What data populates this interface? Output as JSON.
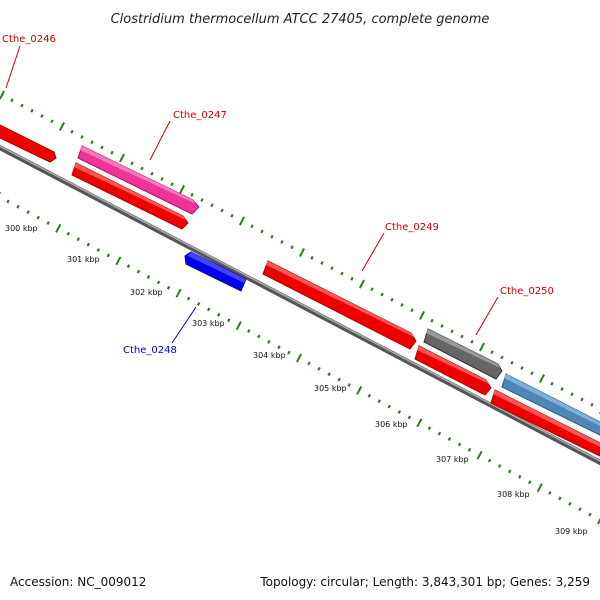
{
  "title": "Clostridium thermocellum ATCC 27405, complete genome",
  "footer": {
    "accession": "Accession: NC_009012",
    "summary": "Topology: circular; Length: 3,843,301 bp; Genes: 3,259"
  },
  "colors": {
    "backbone": "#777777",
    "tick": "#2e7d1f",
    "forward_label": "#cc0000",
    "reverse_label": "#0000cc",
    "gene_red": "#ee0000",
    "gene_pink": "#ee3399",
    "gene_blue": "#0000ee",
    "gene_gray": "#666666",
    "gene_steel": "#4f86b8"
  },
  "genes": [
    {
      "label": "Cthe_0246",
      "color": "gene_red",
      "strand": "forward",
      "label_color": "forward_label"
    },
    {
      "label": "Cthe_0247",
      "color": "gene_pink",
      "strand": "forward",
      "label_color": "forward_label"
    },
    {
      "label": "",
      "color": "gene_red",
      "strand": "forward",
      "label_color": "forward_label"
    },
    {
      "label": "Cthe_0248",
      "color": "gene_blue",
      "strand": "reverse",
      "label_color": "reverse_label"
    },
    {
      "label": "Cthe_0249",
      "color": "gene_red",
      "strand": "forward",
      "label_color": "forward_label"
    },
    {
      "label": "Cthe_0250",
      "color": "gene_gray",
      "strand": "forward",
      "label_color": "forward_label"
    },
    {
      "label": "",
      "color": "gene_red",
      "strand": "forward",
      "label_color": "forward_label"
    },
    {
      "label": "",
      "color": "gene_steel",
      "strand": "forward",
      "label_color": "forward_label"
    },
    {
      "label": "",
      "color": "gene_red",
      "strand": "forward",
      "label_color": "forward_label"
    }
  ],
  "kbp_labels": [
    "300 kbp",
    "301 kbp",
    "302 kbp",
    "303 kbp",
    "304 kbp",
    "305 kbp",
    "306 kbp",
    "307 kbp",
    "308 kbp",
    "309 kbp"
  ]
}
